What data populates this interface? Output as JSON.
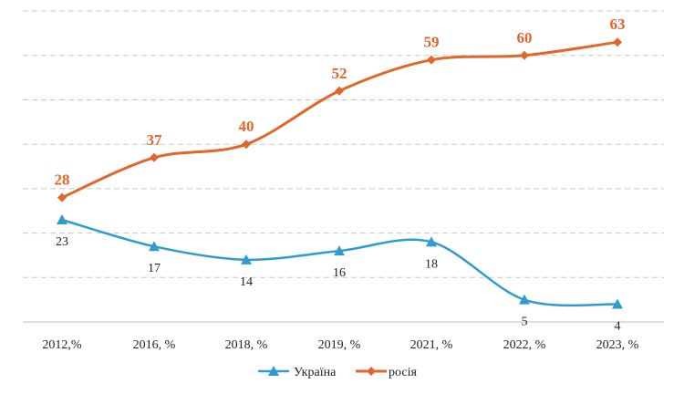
{
  "chart_data": {
    "type": "line",
    "title": "",
    "xlabel": "",
    "ylabel": "",
    "categories": [
      "2012,%",
      "2016, %",
      "2018, %",
      "2019, %",
      "2021, %",
      "2022, %",
      "2023, %"
    ],
    "ylim": [
      0,
      70
    ],
    "grid": true,
    "legend_position": "bottom",
    "series": [
      {
        "name": "Україна",
        "values": [
          23,
          17,
          14,
          16,
          18,
          5,
          4
        ],
        "color": "#2E9CD0",
        "marker": "triangle"
      },
      {
        "name": "росія",
        "values": [
          28,
          37,
          40,
          52,
          59,
          60,
          63
        ],
        "color": "#E2652A",
        "marker": "diamond"
      }
    ]
  }
}
